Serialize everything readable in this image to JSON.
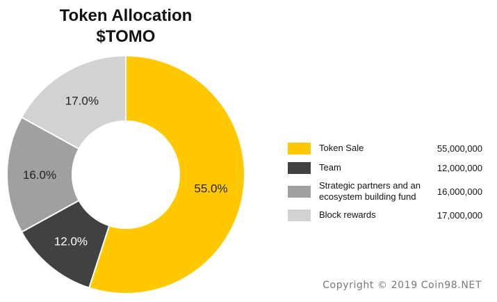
{
  "chart_data": {
    "type": "pie",
    "title": "Token Allocation",
    "subtitle": "$TOMO",
    "labels": [
      "Token Sale",
      "Team",
      "Strategic partners and an ecosystem building fund",
      "Block rewards"
    ],
    "values": [
      55000000,
      12000000,
      16000000,
      17000000
    ],
    "value_labels": [
      "55,000,000",
      "12,000,000",
      "16,000,000",
      "17,000,000"
    ],
    "percent_labels": [
      "55.0%",
      "12.0%",
      "16.0%",
      "17.0%"
    ],
    "colors": [
      "#FFC800",
      "#414141",
      "#A0A0A0",
      "#D2D2D2"
    ],
    "donut": true,
    "legend_position": "right"
  },
  "legend": [
    {
      "label": "Token Sale",
      "value": "55,000,000"
    },
    {
      "label": "Team",
      "value": "12,000,000"
    },
    {
      "label": "Strategic partners and an ecosystem building fund",
      "value": "16,000,000"
    },
    {
      "label": "Block rewards",
      "value": "17,000,000"
    }
  ],
  "footer": {
    "copyright": "Copyright © 2019 Coin98.NET"
  }
}
